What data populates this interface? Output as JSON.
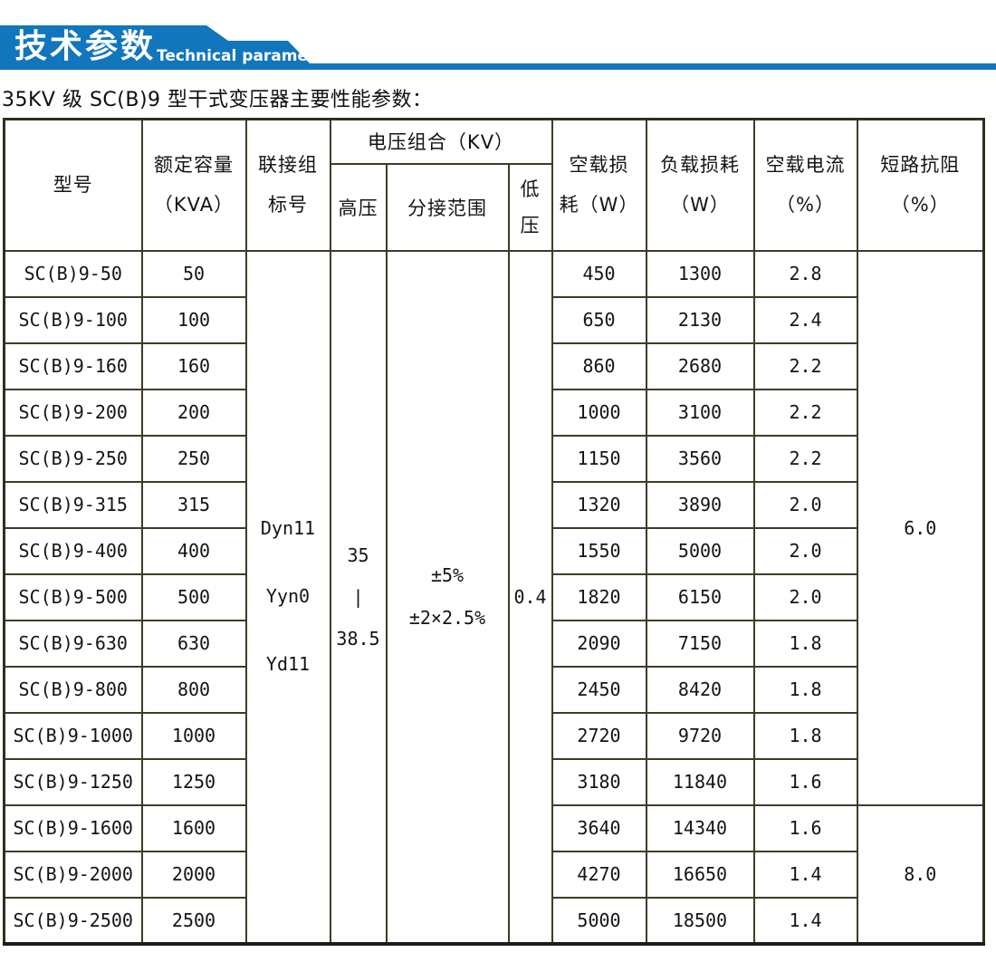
{
  "banner": {
    "title_cn": "技术参数",
    "title_en": "Technical parameter",
    "color": "#1276bd"
  },
  "subtitle": "35KV 级 SC(B)9 型干式变压器主要性能参数：",
  "table": {
    "headers": {
      "model": "型号",
      "capacity_line1": "额定容量",
      "capacity_line2": "（KVA）",
      "connection_line1": "联接组",
      "connection_line2": "标号",
      "voltage_group": "电压组合（KV）",
      "hv": "高压",
      "tap_range": "分接范围",
      "lv_line1": "低",
      "lv_line2": "压",
      "no_load_loss_line1": "空载损",
      "no_load_loss_line2": "耗（W）",
      "load_loss_line1": "负载损耗",
      "load_loss_line2": "（W）",
      "no_load_current_line1": "空载电流",
      "no_load_current_line2": "（%）",
      "impedance_line1": "短路抗阻",
      "impedance_line2": "（%）"
    },
    "merged": {
      "connection_groups": [
        "Dyn11",
        "Yyn0",
        "Yd11"
      ],
      "hv_values": [
        "35",
        "|",
        "38.5"
      ],
      "tap_values": [
        "±5%",
        "±2×2.5%"
      ],
      "lv_value": "0.4",
      "impedance_groups": [
        {
          "value": "6.0",
          "row_start": 0,
          "row_span": 12
        },
        {
          "value": "8.0",
          "row_start": 12,
          "row_span": 3
        }
      ]
    },
    "rows": [
      {
        "model": "SC(B)9-50",
        "kva": "50",
        "p0": "450",
        "pk": "1300",
        "i0": "2.8"
      },
      {
        "model": "SC(B)9-100",
        "kva": "100",
        "p0": "650",
        "pk": "2130",
        "i0": "2.4"
      },
      {
        "model": "SC(B)9-160",
        "kva": "160",
        "p0": "860",
        "pk": "2680",
        "i0": "2.2"
      },
      {
        "model": "SC(B)9-200",
        "kva": "200",
        "p0": "1000",
        "pk": "3100",
        "i0": "2.2"
      },
      {
        "model": "SC(B)9-250",
        "kva": "250",
        "p0": "1150",
        "pk": "3560",
        "i0": "2.2"
      },
      {
        "model": "SC(B)9-315",
        "kva": "315",
        "p0": "1320",
        "pk": "3890",
        "i0": "2.0"
      },
      {
        "model": "SC(B)9-400",
        "kva": "400",
        "p0": "1550",
        "pk": "5000",
        "i0": "2.0"
      },
      {
        "model": "SC(B)9-500",
        "kva": "500",
        "p0": "1820",
        "pk": "6150",
        "i0": "2.0"
      },
      {
        "model": "SC(B)9-630",
        "kva": "630",
        "p0": "2090",
        "pk": "7150",
        "i0": "1.8"
      },
      {
        "model": "SC(B)9-800",
        "kva": "800",
        "p0": "2450",
        "pk": "8420",
        "i0": "1.8"
      },
      {
        "model": "SC(B)9-1000",
        "kva": "1000",
        "p0": "2720",
        "pk": "9720",
        "i0": "1.8"
      },
      {
        "model": "SC(B)9-1250",
        "kva": "1250",
        "p0": "3180",
        "pk": "11840",
        "i0": "1.6"
      },
      {
        "model": "SC(B)9-1600",
        "kva": "1600",
        "p0": "3640",
        "pk": "14340",
        "i0": "1.6"
      },
      {
        "model": "SC(B)9-2000",
        "kva": "2000",
        "p0": "4270",
        "pk": "16650",
        "i0": "1.4"
      },
      {
        "model": "SC(B)9-2500",
        "kva": "2500",
        "p0": "5000",
        "pk": "18500",
        "i0": "1.4"
      }
    ]
  }
}
